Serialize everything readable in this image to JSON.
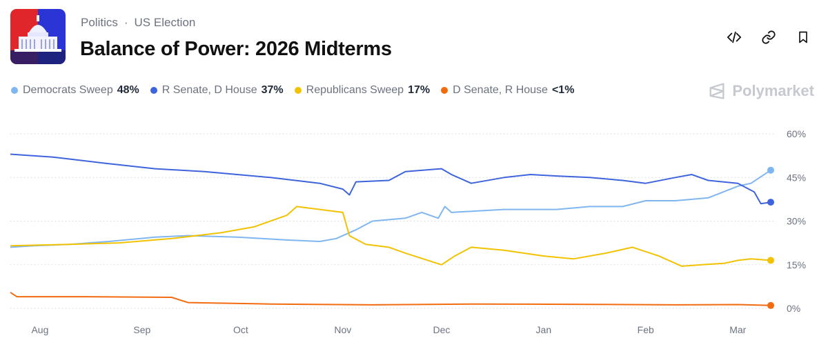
{
  "header": {
    "breadcrumb_category": "Politics",
    "breadcrumb_separator": "·",
    "breadcrumb_subcategory": "US Election",
    "title": "Balance of Power: 2026 Midterms"
  },
  "actions": {
    "embed_icon": "code-icon",
    "link_icon": "link-icon",
    "bookmark_icon": "bookmark-icon"
  },
  "brand": {
    "name": "Polymarket",
    "icon": "polymarket-logo-icon"
  },
  "thumbnail": {
    "icon": "capitol-building-icon",
    "colors": [
      "#e0252b",
      "#2b35d6"
    ]
  },
  "chart_data": {
    "type": "line",
    "x_tick_labels": [
      "Aug",
      "Sep",
      "Oct",
      "Nov",
      "Dec",
      "Jan",
      "Feb",
      "Mar"
    ],
    "x_start": "2025-07-23",
    "x_end": "2026-03-11",
    "x_ticks": [
      "2025-08-01",
      "2025-09-01",
      "2025-10-01",
      "2025-11-01",
      "2025-12-01",
      "2026-01-01",
      "2026-02-01",
      "2026-03-01"
    ],
    "y_ticks": [
      0,
      15,
      30,
      45,
      60
    ],
    "y_tick_labels": [
      "0%",
      "15%",
      "30%",
      "45%",
      "60%"
    ],
    "ylim": [
      0,
      60
    ],
    "grid": "horizontal dotted",
    "legend_position": "top-left",
    "series": [
      {
        "name": "Democrats Sweep",
        "label": "48%",
        "color": "#7fb6f0",
        "points": [
          [
            "2025-07-23",
            21
          ],
          [
            "2025-07-30",
            21.5
          ],
          [
            "2025-08-10",
            22
          ],
          [
            "2025-08-22",
            23
          ],
          [
            "2025-09-05",
            24.5
          ],
          [
            "2025-09-15",
            25
          ],
          [
            "2025-09-30",
            24.5
          ],
          [
            "2025-10-15",
            23.5
          ],
          [
            "2025-10-25",
            23
          ],
          [
            "2025-10-30",
            24
          ],
          [
            "2025-11-05",
            27
          ],
          [
            "2025-11-10",
            30
          ],
          [
            "2025-11-20",
            31
          ],
          [
            "2025-11-25",
            33
          ],
          [
            "2025-11-30",
            31
          ],
          [
            "2025-12-02",
            35
          ],
          [
            "2025-12-04",
            33
          ],
          [
            "2025-12-20",
            34
          ],
          [
            "2026-01-05",
            34
          ],
          [
            "2026-01-15",
            35
          ],
          [
            "2026-01-25",
            35
          ],
          [
            "2026-02-01",
            37
          ],
          [
            "2026-02-10",
            37
          ],
          [
            "2026-02-20",
            38
          ],
          [
            "2026-03-01",
            42
          ],
          [
            "2026-03-05",
            43
          ],
          [
            "2026-03-11",
            47.5
          ]
        ]
      },
      {
        "name": "R Senate, D House",
        "label": "37%",
        "color": "#3d63dd",
        "points": [
          [
            "2025-07-23",
            53
          ],
          [
            "2025-08-05",
            52
          ],
          [
            "2025-08-20",
            50
          ],
          [
            "2025-09-05",
            48
          ],
          [
            "2025-09-20",
            47
          ],
          [
            "2025-10-10",
            45
          ],
          [
            "2025-10-25",
            43
          ],
          [
            "2025-11-01",
            41
          ],
          [
            "2025-11-03",
            39
          ],
          [
            "2025-11-05",
            43.5
          ],
          [
            "2025-11-15",
            44
          ],
          [
            "2025-11-20",
            47
          ],
          [
            "2025-12-01",
            48
          ],
          [
            "2025-12-04",
            46
          ],
          [
            "2025-12-10",
            43
          ],
          [
            "2025-12-20",
            45
          ],
          [
            "2025-12-28",
            46
          ],
          [
            "2026-01-05",
            45.5
          ],
          [
            "2026-01-15",
            45
          ],
          [
            "2026-01-25",
            44
          ],
          [
            "2026-02-01",
            43
          ],
          [
            "2026-02-10",
            45
          ],
          [
            "2026-02-15",
            46
          ],
          [
            "2026-02-20",
            44
          ],
          [
            "2026-03-01",
            43
          ],
          [
            "2026-03-06",
            40
          ],
          [
            "2026-03-08",
            36
          ],
          [
            "2026-03-11",
            36.5
          ]
        ]
      },
      {
        "name": "Republicans Sweep",
        "label": "17%",
        "color": "#f2c200",
        "points": [
          [
            "2025-07-23",
            21.5
          ],
          [
            "2025-08-10",
            22
          ],
          [
            "2025-08-25",
            22.5
          ],
          [
            "2025-09-10",
            24
          ],
          [
            "2025-09-25",
            26
          ],
          [
            "2025-10-05",
            28
          ],
          [
            "2025-10-15",
            32
          ],
          [
            "2025-10-18",
            35
          ],
          [
            "2025-10-25",
            34
          ],
          [
            "2025-11-01",
            33
          ],
          [
            "2025-11-03",
            25
          ],
          [
            "2025-11-08",
            22
          ],
          [
            "2025-11-15",
            21
          ],
          [
            "2025-11-20",
            19
          ],
          [
            "2025-12-01",
            15
          ],
          [
            "2025-12-05",
            18
          ],
          [
            "2025-12-10",
            21
          ],
          [
            "2025-12-20",
            20
          ],
          [
            "2026-01-01",
            18
          ],
          [
            "2026-01-10",
            17
          ],
          [
            "2026-01-20",
            19
          ],
          [
            "2026-01-28",
            21
          ],
          [
            "2026-02-05",
            18
          ],
          [
            "2026-02-12",
            14.5
          ],
          [
            "2026-02-18",
            15
          ],
          [
            "2026-02-25",
            15.5
          ],
          [
            "2026-03-01",
            16.5
          ],
          [
            "2026-03-05",
            17
          ],
          [
            "2026-03-11",
            16.5
          ]
        ]
      },
      {
        "name": "D Senate, R House",
        "label": "<1%",
        "color": "#f26b0f",
        "points": [
          [
            "2025-07-23",
            5.5
          ],
          [
            "2025-07-25",
            4
          ],
          [
            "2025-08-15",
            4
          ],
          [
            "2025-09-10",
            3.8
          ],
          [
            "2025-09-15",
            2
          ],
          [
            "2025-10-10",
            1.5
          ],
          [
            "2025-11-10",
            1.2
          ],
          [
            "2025-12-10",
            1.5
          ],
          [
            "2026-01-10",
            1.4
          ],
          [
            "2026-02-10",
            1.2
          ],
          [
            "2026-03-01",
            1.3
          ],
          [
            "2026-03-11",
            1
          ]
        ]
      }
    ]
  }
}
